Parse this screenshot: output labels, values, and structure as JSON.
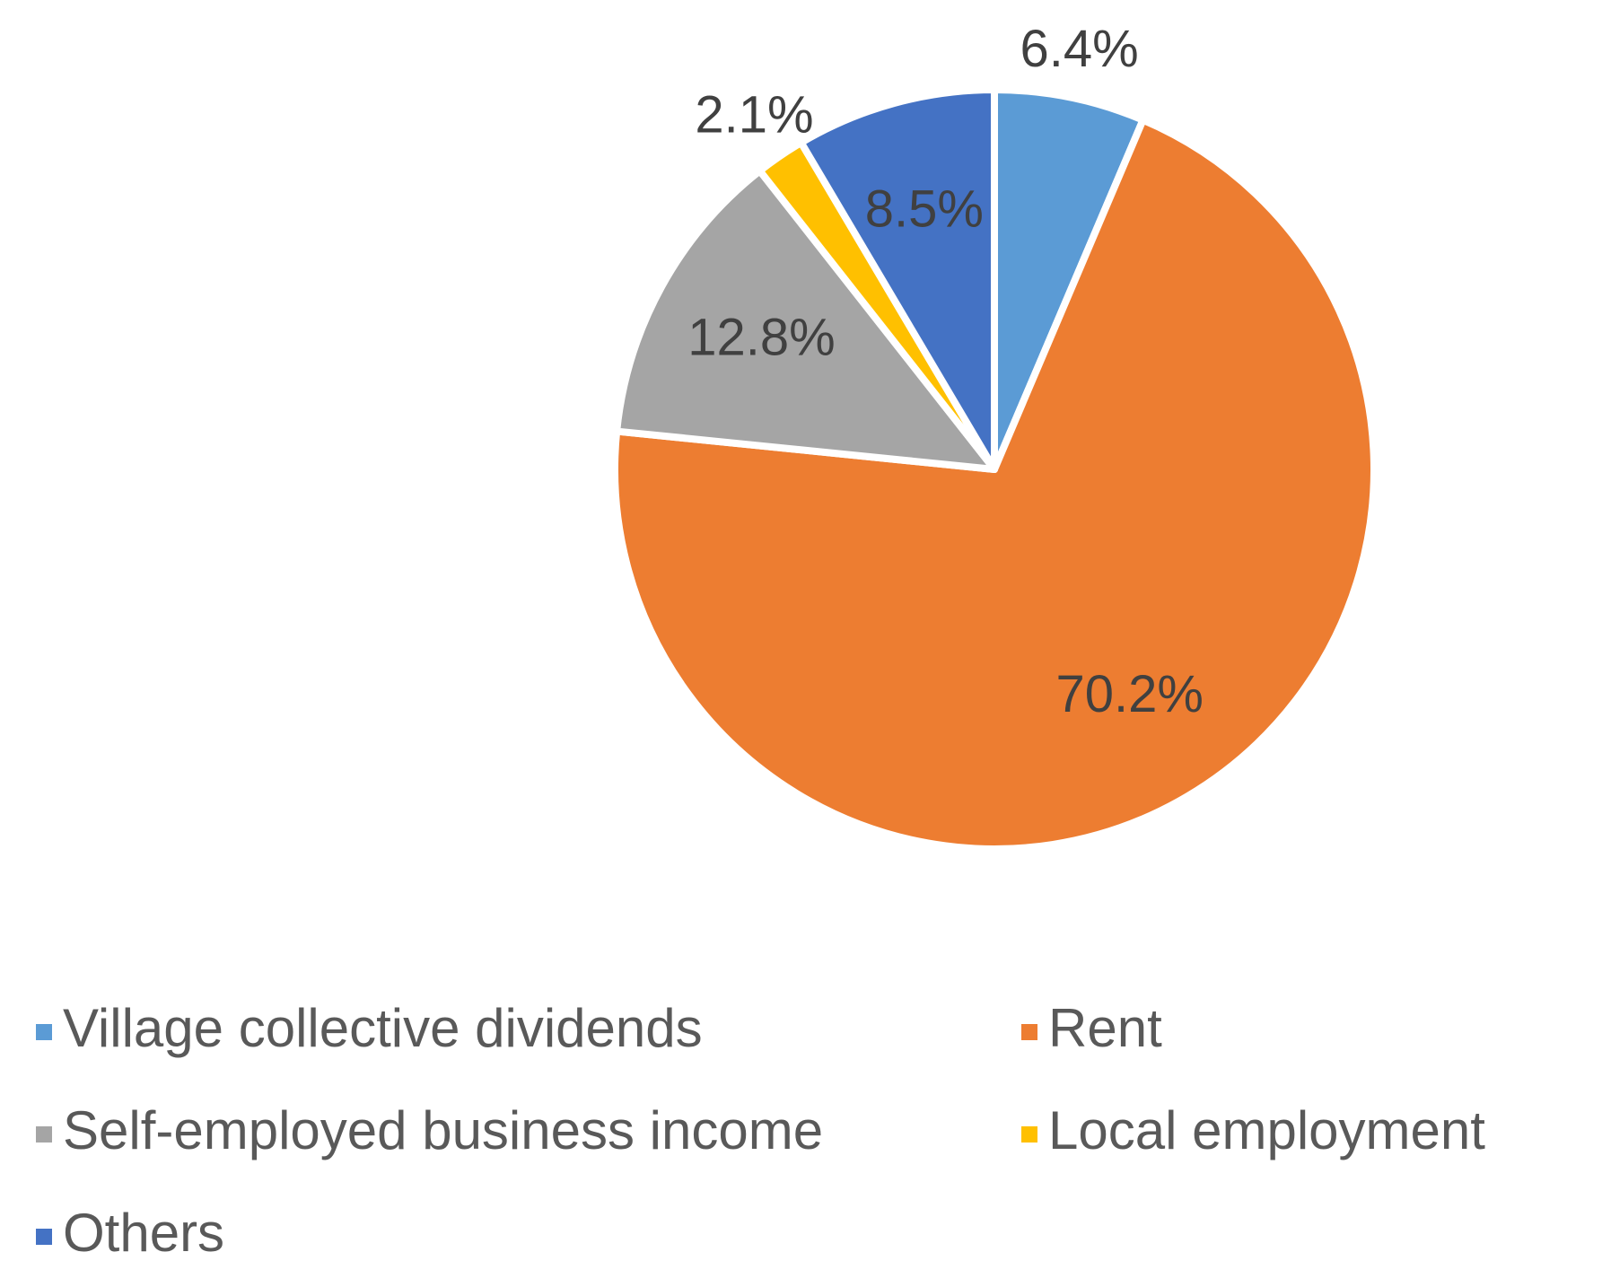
{
  "chart_data": {
    "type": "pie",
    "categories": [
      "Village collective dividends",
      "Rent",
      "Self-employed business income",
      "Local employment",
      "Others"
    ],
    "values": [
      6.4,
      70.2,
      12.8,
      2.1,
      8.5
    ],
    "value_labels": [
      "6.4%",
      "70.2%",
      "12.8%",
      "2.1%",
      "8.5%"
    ],
    "colors": [
      "#5b9bd5",
      "#ed7d31",
      "#a5a5a5",
      "#ffc000",
      "#4472c4"
    ],
    "legend": "bottom"
  }
}
